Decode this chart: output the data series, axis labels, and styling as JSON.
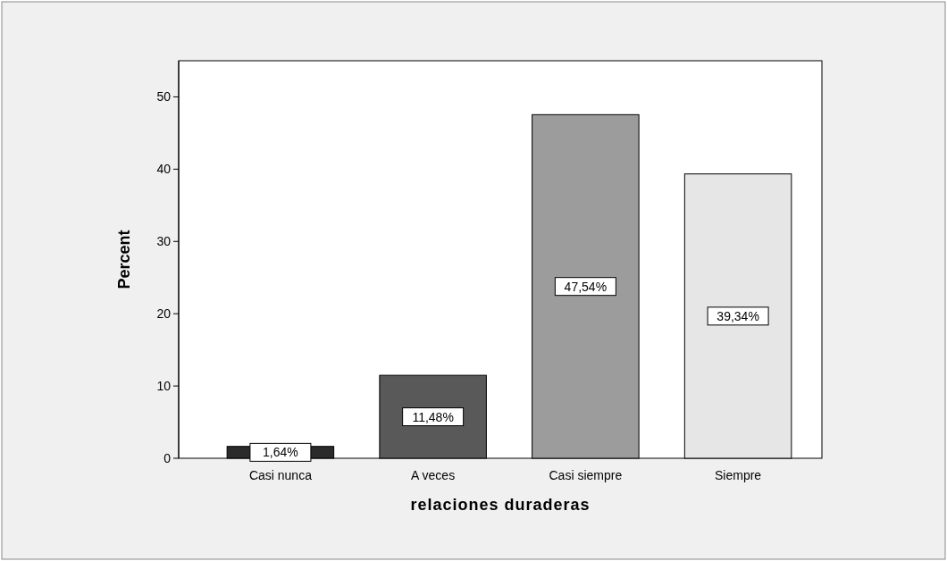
{
  "chart_data": {
    "type": "bar",
    "xlabel": "relaciones duraderas",
    "ylabel": "Percent",
    "categories": [
      "Casi nunca",
      "A veces",
      "Casi siempre",
      "Siempre"
    ],
    "values": [
      1.64,
      11.48,
      47.54,
      39.34
    ],
    "colors": [
      "#2b2b2b",
      "#595959",
      "#9c9c9c",
      "#e6e6e6"
    ],
    "value_labels": [
      "1,64%",
      "11,48%",
      "47,54%",
      "39,34%"
    ],
    "ylim": [
      0,
      55
    ],
    "yticks": [
      0,
      10,
      20,
      30,
      40,
      50
    ],
    "grid": false
  }
}
